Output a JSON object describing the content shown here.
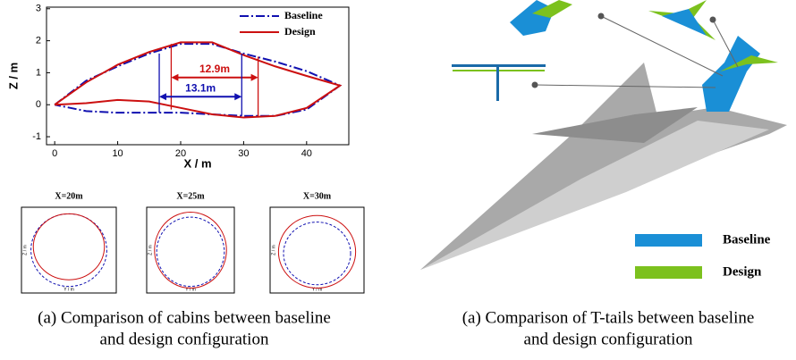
{
  "chart_data": [
    {
      "type": "line",
      "xlabel": "X / m",
      "ylabel": "Z / m",
      "xlim": [
        -1.3,
        46.7
      ],
      "ylim": [
        -1.25,
        3.05
      ],
      "xticks": [
        0,
        10,
        20,
        30,
        40
      ],
      "yticks": [
        -1,
        0,
        1,
        2,
        3
      ],
      "series": [
        {
          "name": "Baseline",
          "color": "#1010b0",
          "dash": "10,3,2,3",
          "x": [
            0,
            5,
            10,
            15,
            20,
            25,
            30,
            35,
            40,
            45.3,
            40,
            35,
            30,
            25,
            20,
            10,
            5,
            0
          ],
          "values": [
            0,
            0.75,
            1.2,
            1.6,
            1.9,
            1.9,
            1.6,
            1.35,
            1.05,
            0.6,
            -0.15,
            -0.35,
            -0.35,
            -0.3,
            -0.25,
            -0.25,
            -0.2,
            0
          ]
        },
        {
          "name": "Design",
          "color": "#cc1010",
          "dash": "",
          "x": [
            0,
            5,
            10,
            15,
            20,
            25,
            30,
            35,
            40,
            45.3,
            40,
            35,
            30,
            25,
            20,
            15,
            10,
            5,
            0
          ],
          "values": [
            0,
            0.7,
            1.25,
            1.65,
            1.95,
            1.95,
            1.55,
            1.2,
            0.9,
            0.6,
            -0.1,
            -0.35,
            -0.4,
            -0.3,
            -0.1,
            0.1,
            0.15,
            0.05,
            0
          ]
        }
      ],
      "annotations": [
        {
          "text": "12.9m",
          "color": "#cc1010",
          "x": [
            18.5,
            32.3
          ],
          "y": 0.85,
          "top": [
            1.9,
            1.5
          ],
          "bottom": [
            -0.15,
            -0.4
          ]
        },
        {
          "text": "13.1m",
          "color": "#1010b0",
          "x": [
            16.6,
            29.7
          ],
          "y": 0.25,
          "top": [
            1.6,
            1.6
          ],
          "bottom": [
            -0.25,
            -0.35
          ]
        }
      ]
    },
    {
      "type": "ellipse",
      "title": "X=20m",
      "xlabel": "Y / m",
      "ylabel": "Z / m",
      "xlim": [
        -1.4,
        1.4
      ],
      "ylim": [
        -0.45,
        2.15
      ],
      "series": [
        {
          "name": "Baseline",
          "color": "#1010b0",
          "dash": "3,2",
          "cx": 0,
          "cy": 0.85,
          "rx": 1.12,
          "ry": 1.1
        },
        {
          "name": "Design",
          "color": "#cc1010",
          "dash": "",
          "cx": 0,
          "cy": 0.95,
          "rx": 1.05,
          "ry": 1.0
        }
      ]
    },
    {
      "type": "ellipse",
      "title": "X=25m",
      "xlabel": "Y / m",
      "ylabel": "Z / m",
      "xlim": [
        -1.4,
        1.4
      ],
      "ylim": [
        -0.45,
        2.15
      ],
      "series": [
        {
          "name": "Baseline",
          "color": "#1010b0",
          "dash": "3,2",
          "cx": 0,
          "cy": 0.8,
          "rx": 1.08,
          "ry": 1.05
        },
        {
          "name": "Design",
          "color": "#cc1010",
          "dash": "",
          "cx": 0,
          "cy": 0.85,
          "rx": 1.15,
          "ry": 1.15
        }
      ]
    },
    {
      "type": "ellipse",
      "title": "X=30m",
      "xlabel": "Y / m",
      "ylabel": "Z / m",
      "xlim": [
        -1.4,
        1.4
      ],
      "ylim": [
        -0.45,
        2.15
      ],
      "series": [
        {
          "name": "Baseline",
          "color": "#1010b0",
          "dash": "3,2",
          "cx": 0,
          "cy": 0.75,
          "rx": 1.0,
          "ry": 0.95
        },
        {
          "name": "Design",
          "color": "#cc1010",
          "dash": "",
          "cx": 0,
          "cy": 0.8,
          "rx": 1.15,
          "ry": 1.1
        }
      ]
    }
  ],
  "render_legend": [
    {
      "label": "Baseline",
      "color": "#1a8fd6"
    },
    {
      "label": "Design",
      "color": "#7cc11e"
    }
  ],
  "captions": [
    [
      "(a) Comparison of cabins between baseline",
      "and design configuration"
    ],
    [
      "(a) Comparison of T-tails between baseline",
      "and design configuration"
    ]
  ]
}
